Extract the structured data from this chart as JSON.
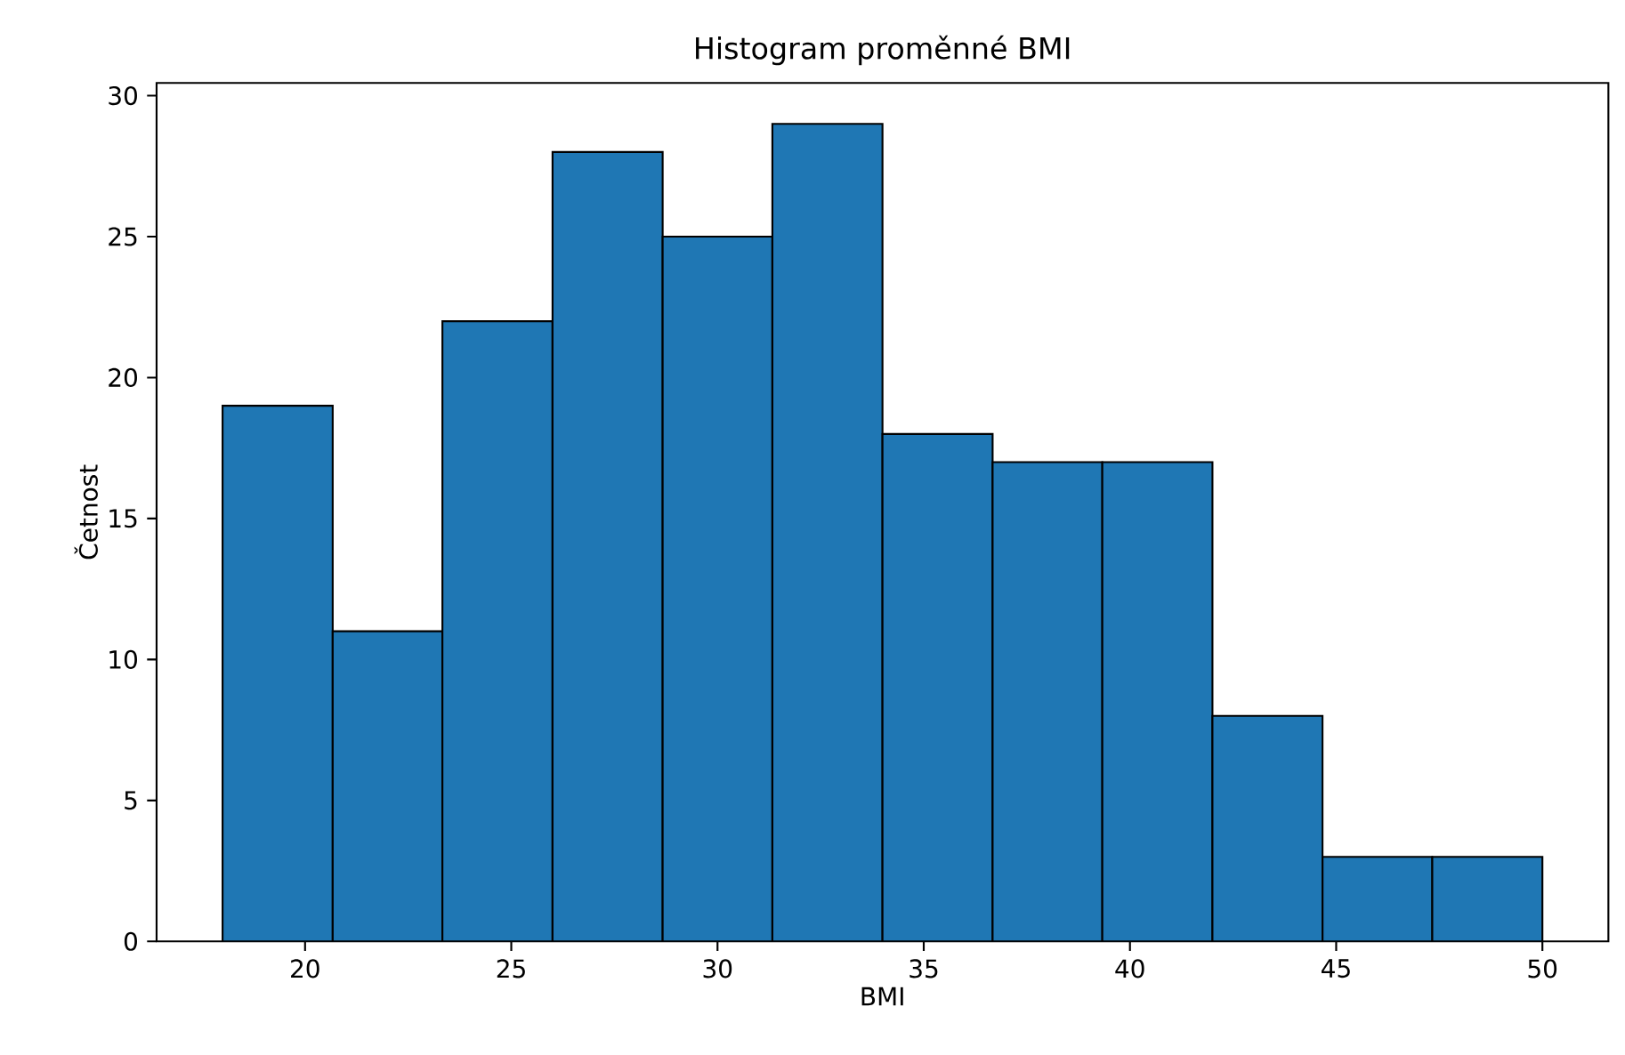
{
  "chart_data": {
    "type": "histogram",
    "title": "Histogram proměnné BMI",
    "xlabel": "BMI",
    "ylabel": "Četnost",
    "bins": [
      18,
      20.67,
      23.33,
      26,
      28.67,
      31.33,
      34,
      36.67,
      39.33,
      42,
      44.67,
      47.33,
      50
    ],
    "values": [
      19,
      11,
      22,
      28,
      25,
      29,
      18,
      17,
      17,
      8,
      3,
      3
    ],
    "color": "#1f77b4",
    "xlim": [
      16.4,
      51.6
    ],
    "ylim": [
      0,
      30.45
    ],
    "xticks": [
      20,
      25,
      30,
      35,
      40,
      45,
      50
    ],
    "yticks": [
      0,
      5,
      10,
      15,
      20,
      25,
      30
    ],
    "grid": false
  }
}
